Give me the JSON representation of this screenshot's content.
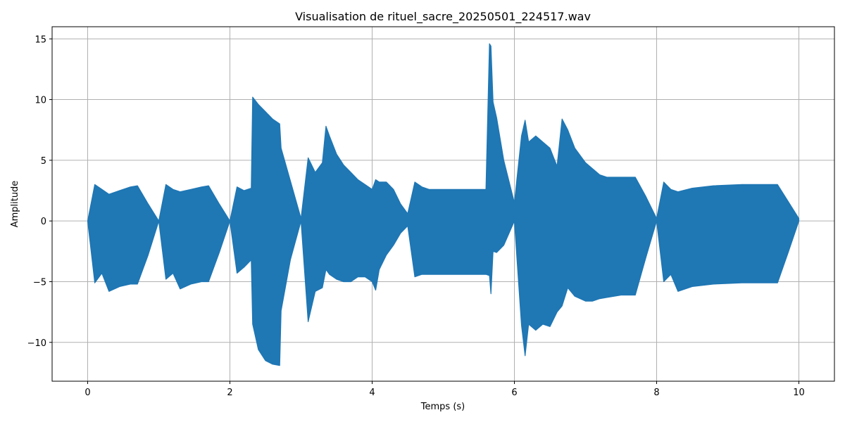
{
  "chart_data": {
    "type": "area",
    "title": "Visualisation de rituel_sacre_20250501_224517.wav",
    "xlabel": "Temps (s)",
    "ylabel": "Amplitude",
    "xlim": [
      -0.5,
      10.5
    ],
    "ylim": [
      -13.2,
      16
    ],
    "x_ticks": [
      0,
      2,
      4,
      6,
      8,
      10
    ],
    "x_tick_labels": [
      "0",
      "2",
      "4",
      "6",
      "8",
      "10"
    ],
    "y_ticks": [
      -10,
      -5,
      0,
      5,
      10,
      15
    ],
    "y_tick_labels": [
      "−10",
      "−5",
      "0",
      "5",
      "10",
      "15"
    ],
    "grid": true,
    "series_color": "#1f77b4",
    "series": [
      {
        "x": [
          0.0,
          0.1,
          0.2,
          0.3,
          0.45,
          0.6,
          0.7,
          0.85,
          1.0,
          1.1,
          1.2,
          1.3,
          1.45,
          1.6,
          1.7,
          1.85,
          2.0,
          2.1,
          2.2,
          2.3,
          2.32,
          2.4,
          2.5,
          2.6,
          2.7,
          2.72,
          2.85,
          3.0,
          3.1,
          3.2,
          3.3,
          3.35,
          3.4,
          3.5,
          3.6,
          3.7,
          3.8,
          3.9,
          4.0,
          4.05,
          4.1,
          4.2,
          4.3,
          4.4,
          4.5,
          4.6,
          4.7,
          4.8,
          5.0,
          5.2,
          5.4,
          5.6,
          5.65,
          5.67,
          5.7,
          5.75,
          5.85,
          6.0,
          6.1,
          6.15,
          6.2,
          6.3,
          6.4,
          6.5,
          6.6,
          6.67,
          6.75,
          6.85,
          7.0,
          7.1,
          7.2,
          7.3,
          7.5,
          7.7,
          7.85,
          8.0,
          8.1,
          8.2,
          8.3,
          8.5,
          8.8,
          9.2,
          9.7,
          9.85,
          10.0
        ],
        "upper": [
          0.0,
          3.0,
          2.6,
          2.2,
          2.5,
          2.8,
          2.9,
          1.4,
          0.0,
          3.0,
          2.6,
          2.4,
          2.6,
          2.8,
          2.9,
          1.4,
          0.0,
          2.8,
          2.5,
          2.7,
          10.2,
          9.6,
          9.0,
          8.4,
          8.0,
          6.0,
          3.3,
          0.2,
          5.2,
          4.0,
          4.8,
          7.8,
          7.0,
          5.5,
          4.6,
          4.0,
          3.4,
          3.0,
          2.6,
          3.4,
          3.2,
          3.2,
          2.6,
          1.4,
          0.6,
          3.2,
          2.8,
          2.6,
          2.6,
          2.6,
          2.6,
          2.6,
          14.6,
          14.4,
          9.8,
          8.5,
          5.0,
          1.5,
          7.0,
          8.3,
          6.5,
          7.0,
          6.5,
          6.0,
          4.5,
          8.4,
          7.5,
          6.0,
          4.8,
          4.3,
          3.8,
          3.6,
          3.6,
          3.6,
          2.0,
          0.2,
          3.2,
          2.6,
          2.4,
          2.7,
          2.9,
          3.0,
          3.0,
          1.6,
          0.2
        ],
        "lower": [
          0.0,
          -5.1,
          -4.3,
          -5.8,
          -5.4,
          -5.2,
          -5.2,
          -2.8,
          0.0,
          -4.8,
          -4.3,
          -5.6,
          -5.2,
          -5.0,
          -5.0,
          -2.6,
          0.0,
          -4.3,
          -3.8,
          -3.2,
          -8.5,
          -10.6,
          -11.5,
          -11.8,
          -11.9,
          -7.4,
          -3.2,
          0.0,
          -8.3,
          -5.8,
          -5.5,
          -4.0,
          -4.4,
          -4.8,
          -5.0,
          -5.0,
          -4.6,
          -4.6,
          -5.0,
          -5.7,
          -4.0,
          -2.8,
          -2.0,
          -1.0,
          -0.4,
          -4.6,
          -4.4,
          -4.4,
          -4.4,
          -4.4,
          -4.4,
          -4.4,
          -4.5,
          -6.0,
          -2.5,
          -2.6,
          -2.0,
          0.0,
          -8.6,
          -11.1,
          -8.5,
          -9.0,
          -8.5,
          -8.7,
          -7.5,
          -7.0,
          -5.5,
          -6.2,
          -6.6,
          -6.6,
          -6.4,
          -6.3,
          -6.1,
          -6.1,
          -3.0,
          0.0,
          -5.0,
          -4.4,
          -5.8,
          -5.4,
          -5.2,
          -5.1,
          -5.1,
          -2.6,
          0.0
        ]
      }
    ]
  }
}
